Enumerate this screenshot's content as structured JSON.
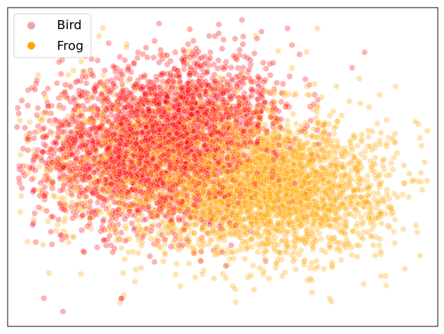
{
  "chart_data": {
    "type": "scatter",
    "title": "",
    "xlabel": "",
    "ylabel": "",
    "xlim": [
      0,
      100
    ],
    "ylim": [
      0,
      100
    ],
    "grid": false,
    "axis_ticks": false,
    "legend_position": "top-left",
    "series": [
      {
        "name": "Bird",
        "color": "#ff0000",
        "legend_color": "#f4a3a3",
        "clusters": [
          {
            "cx": 33,
            "cy": 55,
            "sx": 13,
            "sy": 12,
            "n": 2600
          },
          {
            "cx": 45,
            "cy": 68,
            "sx": 11,
            "sy": 9,
            "n": 700
          }
        ],
        "outliers": [
          [
            8.4,
            8.8
          ],
          [
            26.5,
            8.8
          ],
          [
            59,
            92.5
          ],
          [
            83,
            86
          ]
        ]
      },
      {
        "name": "Frog",
        "color": "#ffa500",
        "legend_color": "#ffa500",
        "clusters": [
          {
            "cx": 62,
            "cy": 43,
            "sx": 13,
            "sy": 10,
            "n": 2400
          },
          {
            "cx": 42,
            "cy": 50,
            "sx": 17,
            "sy": 13,
            "n": 1400
          }
        ],
        "outliers": [
          [
            72,
            93.5
          ],
          [
            95.5,
            63.5
          ],
          [
            64.5,
            17
          ],
          [
            10,
            55
          ]
        ]
      }
    ]
  }
}
